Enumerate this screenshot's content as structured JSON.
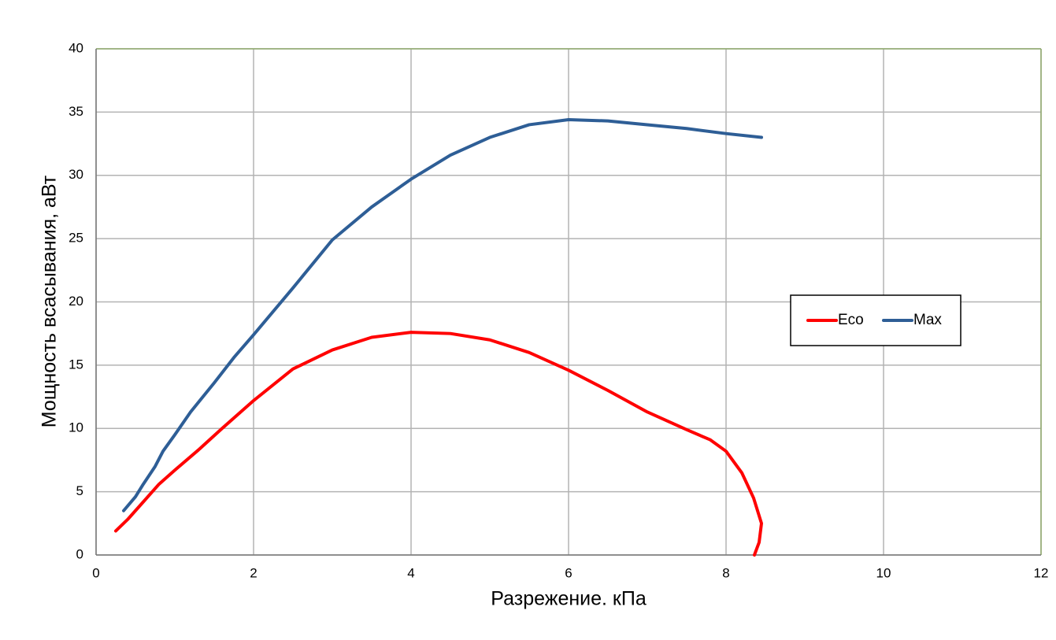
{
  "chart_data": {
    "type": "line",
    "xlabel": "Разрежение. кПа",
    "ylabel": "Мощность всасывания, аВт",
    "xlim": [
      0,
      12
    ],
    "xticks": [
      0,
      2,
      4,
      6,
      8,
      10,
      12
    ],
    "ylim": [
      0,
      40
    ],
    "yticks": [
      0,
      5,
      10,
      15,
      20,
      25,
      30,
      35,
      40
    ],
    "grid": true,
    "legend": "right",
    "series": [
      {
        "name": "Eco",
        "color": "#ff0000",
        "x": [
          0.25,
          0.4,
          0.6,
          0.8,
          1.0,
          1.3,
          1.6,
          2.0,
          2.5,
          3.0,
          3.5,
          4.0,
          4.5,
          5.0,
          5.5,
          6.0,
          6.5,
          7.0,
          7.5,
          7.8,
          8.0,
          8.2,
          8.35,
          8.45,
          8.42,
          8.36
        ],
        "values": [
          1.9,
          2.8,
          4.2,
          5.6,
          6.7,
          8.3,
          10.0,
          12.2,
          14.7,
          16.2,
          17.2,
          17.6,
          17.5,
          17.0,
          16.0,
          14.6,
          13.0,
          11.3,
          9.9,
          9.1,
          8.2,
          6.5,
          4.5,
          2.5,
          1.0,
          0
        ]
      },
      {
        "name": "Max",
        "color": "#2e5e96",
        "x": [
          0.35,
          0.5,
          0.6,
          0.75,
          0.85,
          1.0,
          1.2,
          1.5,
          1.75,
          2.0,
          2.5,
          3.0,
          3.5,
          4.0,
          4.5,
          5.0,
          5.5,
          6.0,
          6.5,
          7.0,
          7.5,
          8.0,
          8.45
        ],
        "values": [
          3.5,
          4.6,
          5.6,
          7.0,
          8.2,
          9.5,
          11.3,
          13.6,
          15.6,
          17.4,
          21.1,
          24.9,
          27.5,
          29.7,
          31.6,
          33.0,
          34.0,
          34.4,
          34.3,
          34.0,
          33.7,
          33.3,
          33.0
        ]
      }
    ]
  }
}
